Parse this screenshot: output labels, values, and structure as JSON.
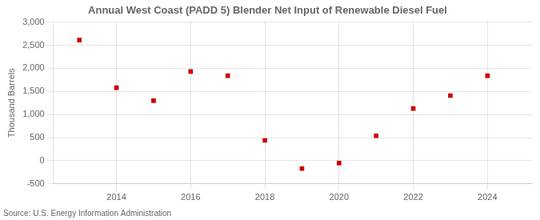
{
  "chart_data": {
    "type": "scatter",
    "title": "Annual West Coast (PADD 5) Blender Net Input of Renewable Diesel Fuel",
    "y_label": "Thousand Barrels",
    "annotation": "Source: U.S. Energy Information Administration",
    "x": [
      2013,
      2014,
      2015,
      2016,
      2017,
      2018,
      2019,
      2020,
      2021,
      2022,
      2023,
      2024
    ],
    "values": [
      2610,
      1580,
      1300,
      1930,
      1840,
      440,
      -170,
      -50,
      540,
      1130,
      1410,
      1840
    ],
    "color": "#cc0000",
    "marker": "square",
    "xlim": [
      2012.3,
      2025.2
    ],
    "xticks": [
      2014,
      2016,
      2018,
      2020,
      2022,
      2024
    ],
    "ylim": [
      -500,
      3000
    ],
    "yticks": [
      -500,
      0,
      500,
      {
        "value": 1000,
        "label": "1,000"
      },
      {
        "value": 1500,
        "label": "1,500"
      },
      {
        "value": 2000,
        "label": "2,000"
      },
      {
        "value": 2500,
        "label": "2,500"
      },
      {
        "value": 3000,
        "label": "3,000"
      }
    ],
    "grid": true
  }
}
